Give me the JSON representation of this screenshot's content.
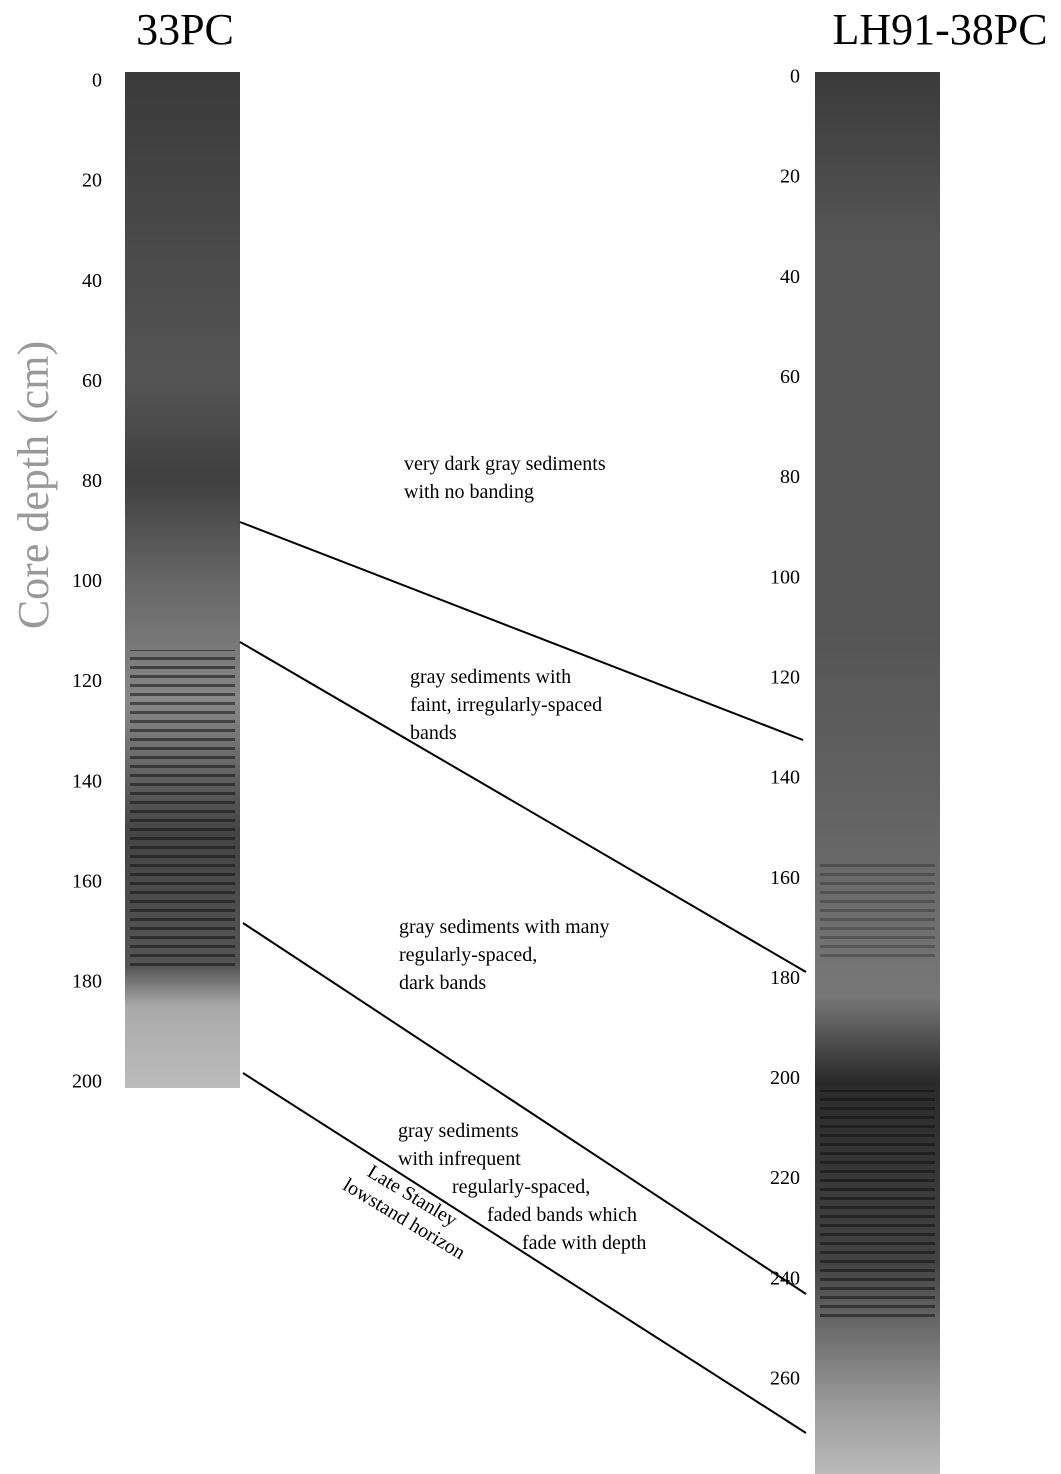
{
  "cores": [
    {
      "title": "33PC",
      "depths": [
        0,
        20,
        40,
        60,
        80,
        100,
        120,
        140,
        160,
        180,
        200
      ]
    },
    {
      "title": "LH91-38PC",
      "depths": [
        0,
        20,
        40,
        60,
        80,
        100,
        120,
        140,
        160,
        180,
        200,
        220,
        240,
        260
      ]
    }
  ],
  "axis_label": "Core depth (cm)",
  "annotations": [
    {
      "lines": [
        "very dark gray sediments",
        "with no banding"
      ]
    },
    {
      "lines": [
        "gray sediments with",
        "faint, irregularly-spaced",
        "bands"
      ]
    },
    {
      "lines": [
        "gray sediments with many",
        "regularly-spaced,",
        "dark bands"
      ]
    },
    {
      "lines": [
        "gray sediments",
        "with infrequent",
        "regularly-spaced,",
        "faded bands which",
        "fade with depth"
      ]
    }
  ],
  "horizon_label": [
    "Late Stanley",
    "lowstand horizon"
  ]
}
